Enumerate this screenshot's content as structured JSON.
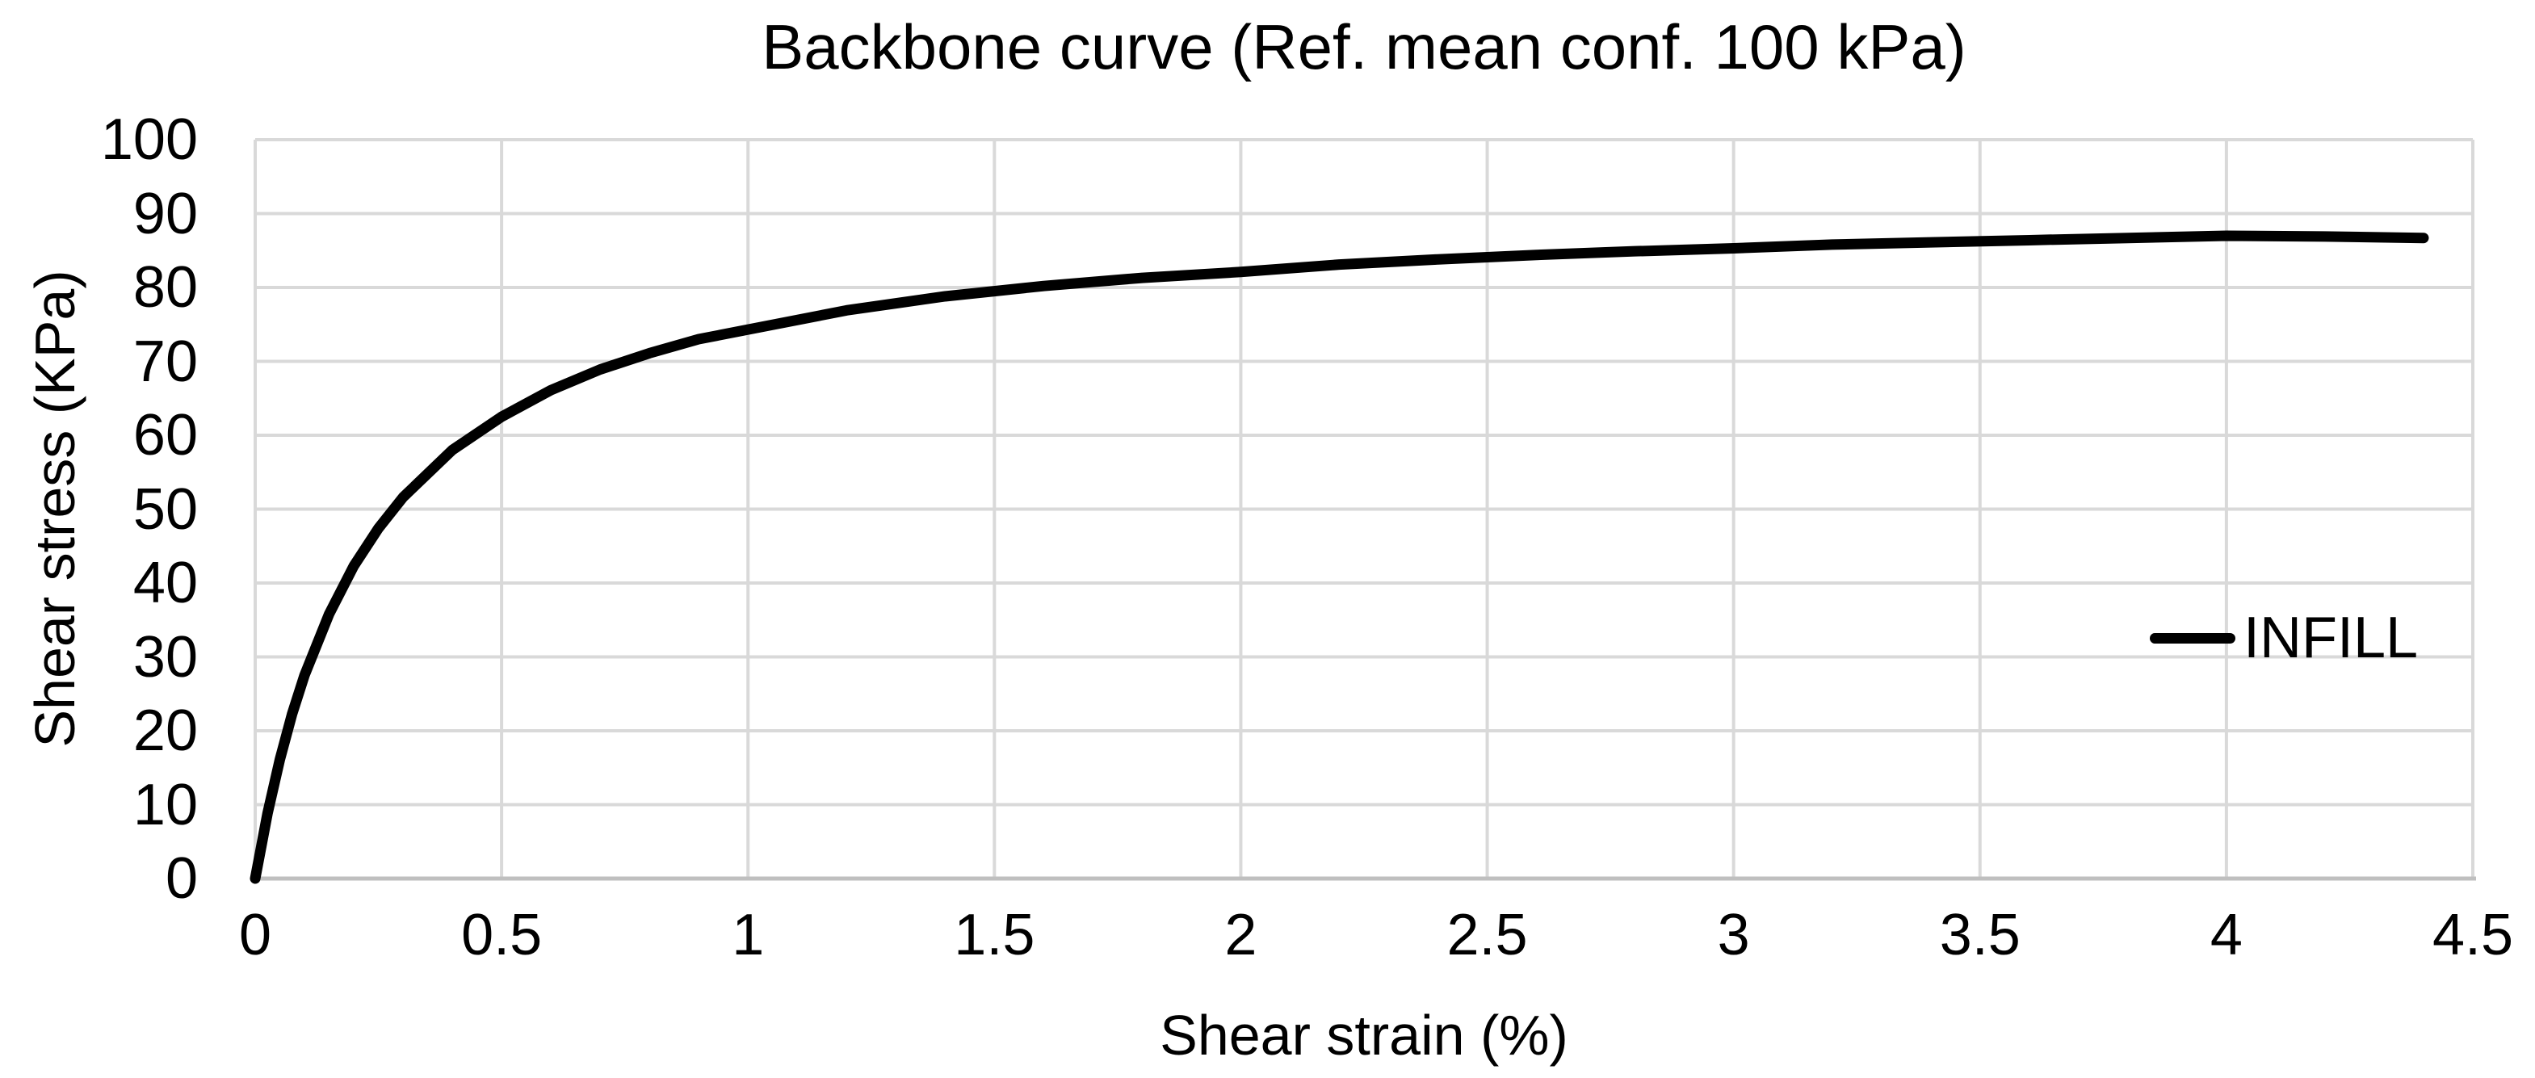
{
  "title": "Backbone curve (Ref. mean conf. 100 kPa)",
  "colors": {
    "background": "#FFFFFF",
    "gridline": "#D9D9D9",
    "axis_line": "#BFBFBF",
    "series": "#000000",
    "text": "#000000"
  },
  "legend": {
    "position": "inside-right",
    "items": [
      {
        "label": "INFILL",
        "color": "#000000",
        "swatch": "line"
      }
    ]
  },
  "chart_data": {
    "type": "line",
    "title": "Backbone curve (Ref. mean conf. 100 kPa)",
    "xlabel": "Shear strain (%)",
    "ylabel": "Shear stress (KPa)",
    "xlim": [
      0,
      4.5
    ],
    "ylim": [
      0,
      100
    ],
    "x_tick_labels": [
      "0",
      "0.5",
      "1",
      "1.5",
      "2",
      "2.5",
      "3",
      "3.5",
      "4",
      "4.5"
    ],
    "x_tick_values": [
      0,
      0.5,
      1,
      1.5,
      2,
      2.5,
      3,
      3.5,
      4,
      4.5
    ],
    "y_tick_labels": [
      "0",
      "10",
      "20",
      "30",
      "40",
      "50",
      "60",
      "70",
      "80",
      "90",
      "100"
    ],
    "y_tick_values": [
      0,
      10,
      20,
      30,
      40,
      50,
      60,
      70,
      80,
      90,
      100
    ],
    "grid": true,
    "legend_position": "inside-right",
    "series": [
      {
        "name": "INFILL",
        "color": "#000000",
        "x": [
          0,
          0.025,
          0.05,
          0.075,
          0.1,
          0.15,
          0.2,
          0.25,
          0.3,
          0.4,
          0.5,
          0.6,
          0.7,
          0.8,
          0.9,
          1.0,
          1.2,
          1.4,
          1.6,
          1.8,
          2.0,
          2.2,
          2.4,
          2.6,
          2.8,
          3.0,
          3.2,
          3.4,
          3.6,
          3.8,
          4.0,
          4.2,
          4.4
        ],
        "y": [
          0,
          8.8,
          16.1,
          22.3,
          27.5,
          35.8,
          42.3,
          47.4,
          51.6,
          58.0,
          62.5,
          66.1,
          68.9,
          71.1,
          73.0,
          74.3,
          76.9,
          78.8,
          80.2,
          81.3,
          82.1,
          83.1,
          83.8,
          84.4,
          84.9,
          85.3,
          85.8,
          86.1,
          86.4,
          86.7,
          87.0,
          86.9,
          86.7
        ]
      }
    ]
  }
}
